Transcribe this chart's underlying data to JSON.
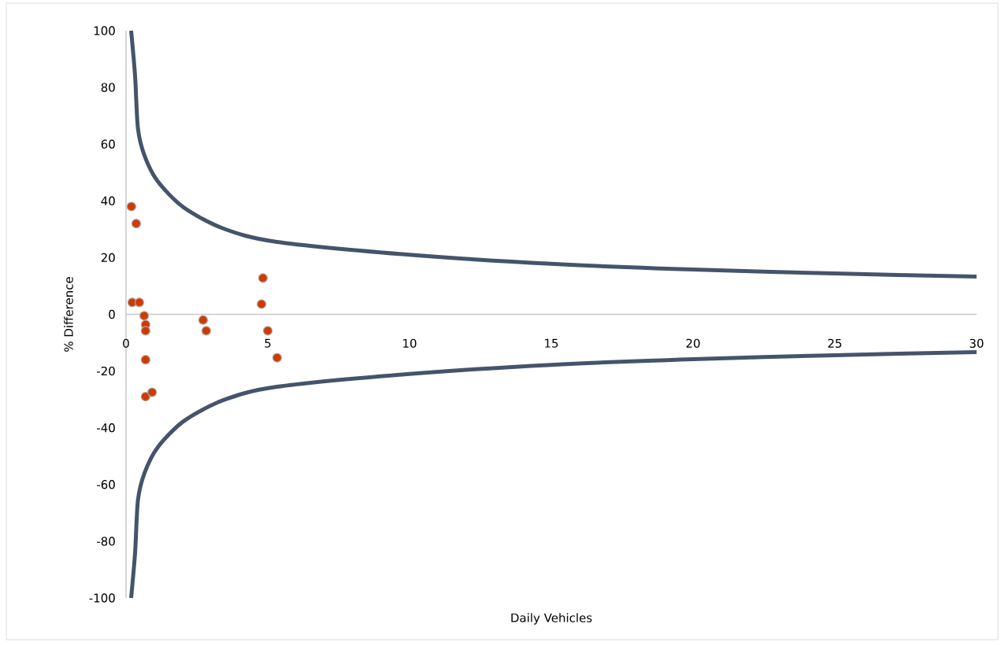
{
  "chart_data": {
    "type": "scatter",
    "xlabel": "Daily Vehicles",
    "ylabel": "% Difference",
    "xlim": [
      0,
      30
    ],
    "ylim": [
      -100,
      100
    ],
    "xticks": [
      0,
      5,
      10,
      15,
      20,
      25,
      30
    ],
    "yticks": [
      -100,
      -80,
      -60,
      -40,
      -20,
      0,
      20,
      40,
      60,
      80,
      100
    ],
    "grid": false,
    "series": [
      {
        "color": "#d03a00",
        "marker": "circle",
        "x": [
          0.19,
          0.36,
          0.22,
          0.47,
          0.64,
          0.69,
          0.69,
          0.69,
          0.69,
          0.92,
          2.72,
          2.83,
          4.83,
          4.78,
          5.0,
          5.33
        ],
        "values": [
          38,
          32,
          4.2,
          4.2,
          -0.5,
          -3.6,
          -5.8,
          -16,
          -29,
          -27.5,
          -2,
          -5.8,
          12.8,
          3.6,
          -5.8,
          -15.3
        ]
      },
      {
        "type": "line",
        "color": "#44546a",
        "marker": "none",
        "x": [
          0.18,
          0.32,
          0.42,
          0.65,
          1.11,
          2.03,
          3.42,
          5.28,
          10,
          15,
          20,
          25,
          30
        ],
        "values": [
          100,
          84,
          65.6,
          56,
          47,
          37.7,
          30.3,
          25.6,
          21,
          17.8,
          15.8,
          14.4,
          13.3
        ]
      },
      {
        "type": "line",
        "color": "#44546a",
        "marker": "none",
        "x": [
          0.18,
          0.32,
          0.42,
          0.65,
          1.11,
          2.03,
          3.42,
          5.28,
          10,
          15,
          20,
          25,
          30
        ],
        "values": [
          -100,
          -84,
          -65.6,
          -56,
          -47,
          -37.7,
          -30.3,
          -25.6,
          -21,
          -17.8,
          -15.8,
          -14.4,
          -13.3
        ]
      }
    ]
  }
}
